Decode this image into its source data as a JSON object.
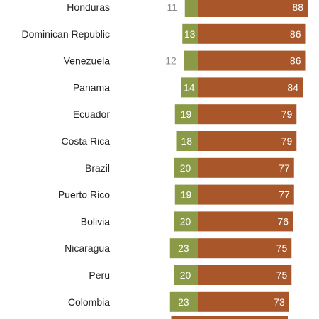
{
  "chart_data": {
    "type": "bar",
    "orientation": "horizontal",
    "stacked": "diverging",
    "categories": [
      "Honduras",
      "Dominican Republic",
      "Venezuela",
      "Panama",
      "Ecuador",
      "Costa Rica",
      "Brazil",
      "Puerto Rico",
      "Bolivia",
      "Nicaragua",
      "Peru",
      "Colombia"
    ],
    "series": [
      {
        "values": [
          11,
          13,
          12,
          14,
          19,
          18,
          20,
          19,
          20,
          23,
          20,
          23
        ],
        "color": "#8a9a46",
        "direction": "left"
      },
      {
        "values": [
          88,
          86,
          86,
          84,
          79,
          79,
          77,
          77,
          76,
          75,
          75,
          73
        ],
        "color": "#a8562a",
        "direction": "right"
      }
    ],
    "grid": false,
    "legend": "none"
  }
}
